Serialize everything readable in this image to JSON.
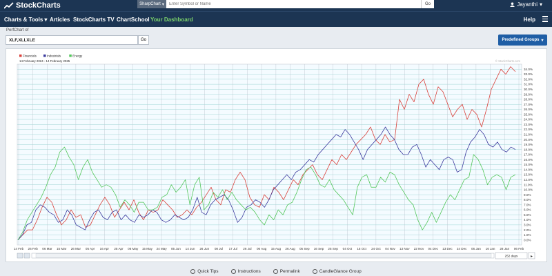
{
  "header": {
    "logo_text": "StockCharts",
    "symbol_type": "SharpChart",
    "symbol_placeholder": "Enter Symbol or Name",
    "go_label": "Go",
    "user_name": "Jayanthi"
  },
  "nav": {
    "items": [
      "Charts & Tools",
      "Articles",
      "StockCharts TV",
      "ChartSchool",
      "Your Dashboard"
    ],
    "help_label": "Help"
  },
  "perfchart": {
    "label": "PerfChart of",
    "symbols": "XLF,XLI,XLE",
    "go_label": "Go",
    "predefined_label": "Predefined Groups",
    "days_value": "252 days"
  },
  "footer": {
    "links": [
      "Quick Tips",
      "Instructions",
      "Permalink",
      "CandleGlance Group"
    ]
  },
  "colors": {
    "nav_bg": "#1c3553",
    "dashboard_green": "#7cd36b",
    "financials": "#d9403a",
    "industrials": "#3b3b9e",
    "energy": "#52c65a",
    "button_blue": "#1f5ea5"
  },
  "chart_data": {
    "type": "line",
    "subtitle": "14 February 2024 - 14 February 2025",
    "watermark": "© StockCharts.com",
    "y_axis_side": "right",
    "ylim": [
      -1,
      35
    ],
    "y_ticks": [
      0,
      1,
      2,
      3,
      4,
      5,
      6,
      7,
      8,
      9,
      10,
      11,
      12,
      13,
      14,
      15,
      16,
      17,
      18,
      19,
      20,
      21,
      22,
      23,
      24,
      25,
      26,
      27,
      28,
      29,
      30,
      31,
      32,
      33,
      34
    ],
    "x_labels": [
      "14 Feb",
      "26 Feb",
      "06 Mar",
      "15 Mar",
      "26 Mar",
      "05 Apr",
      "16 Apr",
      "25 Apr",
      "06 May",
      "15 May",
      "24 May",
      "05 Jun",
      "14 Jun",
      "26 Jun",
      "08 Jul",
      "17 Jul",
      "26 Jul",
      "06 Aug",
      "15 Aug",
      "26 Aug",
      "05 Sep",
      "16 Sep",
      "25 Sep",
      "04 Oct",
      "15 Oct",
      "24 Oct",
      "04 Nov",
      "13 Nov",
      "22 Nov",
      "04 Dec",
      "13 Dec",
      "24 Dec",
      "06 Jan",
      "16 Jan",
      "28 Jan",
      "06 Feb"
    ],
    "legend_position": "top-left",
    "grid": true,
    "series": [
      {
        "name": "Financials",
        "color": "#d9403a",
        "values": [
          0.0,
          1.0,
          2.0,
          2.0,
          4.0,
          6.5,
          8.5,
          7.5,
          5.0,
          3.0,
          4.0,
          6.0,
          4.5,
          5.0,
          2.5,
          3.0,
          5.0,
          7.0,
          8.5,
          7.0,
          4.5,
          6.0,
          7.5,
          6.0,
          8.0,
          5.5,
          4.0,
          6.0,
          5.5,
          6.0,
          8.0,
          7.0,
          6.0,
          4.5,
          5.0,
          6.0,
          5.0,
          6.5,
          7.5,
          9.0,
          10.5,
          8.0,
          7.0,
          10.0,
          9.5,
          12.0,
          13.5,
          12.0,
          8.5,
          7.0,
          6.5,
          9.0,
          8.0,
          10.5,
          9.5,
          8.0,
          10.0,
          12.0,
          11.0,
          13.0,
          14.0,
          15.0,
          13.0,
          12.0,
          14.0,
          16.0,
          15.0,
          17.0,
          16.0,
          17.5,
          19.0,
          20.0,
          21.0,
          22.5,
          20.0,
          19.0,
          21.0,
          19.5,
          20.0,
          28.0,
          26.0,
          29.0,
          27.5,
          31.0,
          32.0,
          29.0,
          27.0,
          30.5,
          29.5,
          27.0,
          24.5,
          26.0,
          27.0,
          24.0,
          26.0,
          25.0,
          22.5,
          26.0,
          30.0,
          32.0,
          34.0,
          33.0,
          34.5,
          33.5
        ]
      },
      {
        "name": "Industrials",
        "color": "#3b3b9e",
        "values": [
          0.0,
          1.0,
          3.0,
          3.5,
          6.0,
          7.0,
          6.5,
          5.5,
          5.0,
          3.5,
          4.0,
          6.0,
          5.0,
          3.0,
          2.5,
          2.0,
          4.0,
          5.5,
          6.0,
          4.5,
          4.0,
          5.5,
          6.0,
          4.0,
          5.0,
          4.0,
          3.5,
          5.0,
          4.5,
          5.0,
          6.0,
          5.5,
          4.0,
          3.5,
          4.0,
          5.0,
          4.5,
          4.0,
          4.5,
          6.0,
          8.5,
          5.5,
          5.0,
          7.0,
          8.0,
          8.5,
          9.0,
          8.0,
          6.0,
          3.5,
          4.5,
          6.5,
          7.0,
          8.0,
          7.5,
          6.5,
          8.0,
          10.0,
          11.0,
          12.0,
          13.0,
          12.0,
          13.5,
          14.0,
          15.0,
          16.0,
          15.5,
          17.0,
          18.0,
          19.0,
          20.0,
          21.0,
          20.5,
          22.0,
          21.0,
          19.5,
          18.0,
          16.0,
          18.0,
          19.0,
          20.0,
          21.0,
          22.5,
          21.0,
          20.0,
          18.0,
          17.0,
          17.0,
          18.5,
          19.0,
          17.0,
          14.5,
          16.0,
          15.0,
          14.0,
          16.0,
          16.5,
          16.0,
          13.5,
          14.0,
          17.5,
          19.5,
          20.5,
          22.0,
          21.0,
          19.0,
          18.5,
          19.5,
          18.0,
          17.5,
          18.5,
          18.0
        ]
      },
      {
        "name": "Energy",
        "color": "#52c65a",
        "values": [
          0.0,
          1.5,
          4.0,
          5.5,
          7.0,
          8.5,
          10.5,
          13.0,
          14.5,
          17.5,
          18.5,
          16.5,
          15.0,
          12.0,
          14.5,
          16.0,
          13.5,
          12.0,
          10.5,
          11.0,
          10.5,
          9.0,
          6.5,
          8.0,
          7.0,
          5.5,
          7.5,
          7.5,
          6.0,
          6.0,
          6.5,
          8.5,
          9.0,
          11.0,
          9.5,
          10.5,
          12.0,
          7.0,
          11.0,
          12.5,
          6.0,
          7.0,
          9.5,
          8.5,
          10.0,
          8.0,
          9.5,
          8.0,
          7.0,
          6.0,
          6.5,
          5.5,
          4.0,
          3.0,
          5.0,
          4.0,
          6.0,
          5.0,
          7.0,
          7.5,
          9.5,
          12.0,
          14.0,
          14.5,
          13.0,
          11.0,
          10.5,
          12.0,
          10.0,
          9.0,
          8.0,
          6.5,
          5.0,
          10.5,
          12.5,
          13.0,
          10.5,
          10.5,
          12.5,
          11.5,
          13.5,
          13.0,
          11.0,
          9.5,
          8.0,
          7.0,
          4.0,
          2.0,
          3.5,
          5.5,
          3.5,
          5.5,
          7.5,
          9.0,
          8.0,
          10.0,
          12.0,
          12.5,
          17.0,
          16.0,
          14.0,
          11.0,
          12.5,
          13.0,
          12.5,
          10.0,
          12.5,
          13.0
        ]
      }
    ]
  }
}
